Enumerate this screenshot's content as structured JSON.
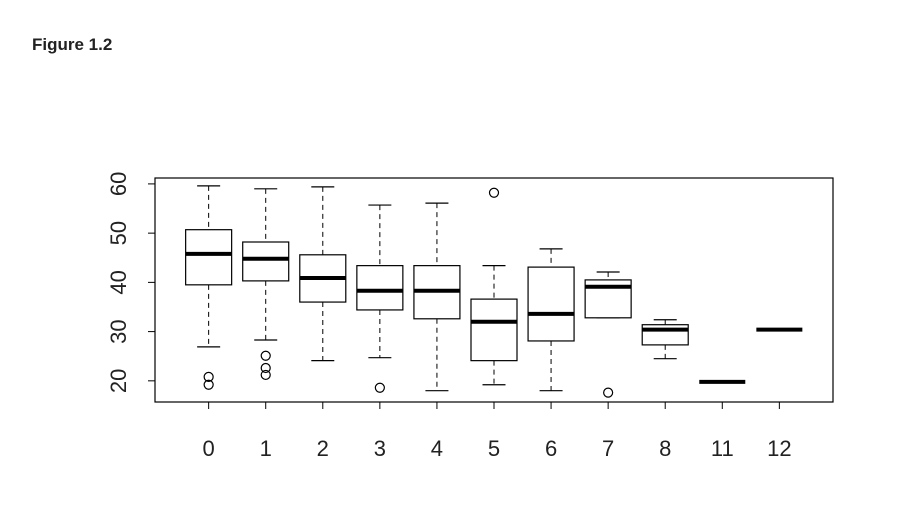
{
  "chart_data": {
    "type": "boxplot",
    "title": "Figure 1.2",
    "categories": [
      "0",
      "1",
      "2",
      "3",
      "4",
      "5",
      "6",
      "7",
      "8",
      "11",
      "12"
    ],
    "boxes": [
      {
        "whislo": 26.9,
        "q1": 39.5,
        "med": 45.8,
        "q3": 50.7,
        "whishi": 59.6,
        "outliers": [
          20.8,
          19.2
        ]
      },
      {
        "whislo": 28.3,
        "q1": 40.3,
        "med": 44.8,
        "q3": 48.2,
        "whishi": 59.0,
        "outliers": [
          25.1,
          22.6,
          21.2
        ]
      },
      {
        "whislo": 24.1,
        "q1": 36.0,
        "med": 40.9,
        "q3": 45.6,
        "whishi": 59.4,
        "outliers": []
      },
      {
        "whislo": 24.7,
        "q1": 34.4,
        "med": 38.3,
        "q3": 43.4,
        "whishi": 55.7,
        "outliers": [
          18.6
        ]
      },
      {
        "whislo": 18.0,
        "q1": 32.6,
        "med": 38.3,
        "q3": 43.4,
        "whishi": 56.1,
        "outliers": []
      },
      {
        "whislo": 19.2,
        "q1": 24.1,
        "med": 32.0,
        "q3": 36.6,
        "whishi": 43.4,
        "outliers": [
          58.2
        ]
      },
      {
        "whislo": 18.0,
        "q1": 28.1,
        "med": 33.6,
        "q3": 43.1,
        "whishi": 46.8,
        "outliers": []
      },
      {
        "whislo": 32.8,
        "q1": 32.8,
        "med": 39.1,
        "q3": 40.5,
        "whishi": 42.1,
        "outliers": [
          17.6
        ]
      },
      {
        "whislo": 24.5,
        "q1": 27.3,
        "med": 30.4,
        "q3": 31.4,
        "whishi": 32.4,
        "outliers": []
      },
      {
        "whislo": 19.8,
        "q1": 19.8,
        "med": 19.8,
        "q3": 19.8,
        "whishi": 19.8,
        "outliers": []
      },
      {
        "whislo": 30.4,
        "q1": 30.4,
        "med": 30.4,
        "q3": 30.4,
        "whishi": 30.4,
        "outliers": []
      }
    ],
    "ylim": [
      15.7,
      61.2
    ],
    "yticks": [
      20,
      30,
      40,
      50,
      60
    ],
    "color": "#000000"
  }
}
